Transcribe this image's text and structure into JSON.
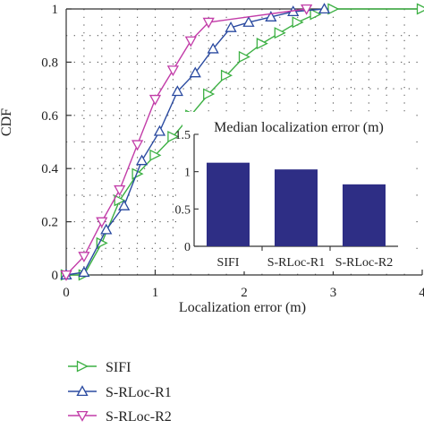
{
  "chart_data": [
    {
      "type": "line",
      "xlabel": "Localization error (m)",
      "ylabel": "CDF",
      "xlim": [
        0,
        4
      ],
      "ylim": [
        0,
        1
      ],
      "xticks": [
        "0",
        "1",
        "2",
        "3",
        "4"
      ],
      "yticks": [
        "0",
        "0.2",
        "0.4",
        "0.6",
        "0.8",
        "1"
      ],
      "grid": "dotted",
      "legend_position": "bottom-left, below plot",
      "series": [
        {
          "name": "SIFI",
          "color": "#3cb043",
          "marker": "triangle-right",
          "x": [
            0,
            0.2,
            0.4,
            0.6,
            0.8,
            1.0,
            1.2,
            1.4,
            1.6,
            1.8,
            2.0,
            2.2,
            2.4,
            2.6,
            2.8,
            3.0,
            4.0
          ],
          "y": [
            0,
            0.0,
            0.12,
            0.28,
            0.38,
            0.45,
            0.52,
            0.6,
            0.68,
            0.75,
            0.82,
            0.87,
            0.91,
            0.95,
            0.98,
            1.0,
            1.0
          ]
        },
        {
          "name": "S-RLoc-R1",
          "color": "#2a4aa0",
          "marker": "triangle-up",
          "x": [
            0,
            0.2,
            0.45,
            0.65,
            0.85,
            1.05,
            1.25,
            1.45,
            1.65,
            1.85,
            2.05,
            2.3,
            2.55,
            2.9
          ],
          "y": [
            0,
            0.01,
            0.17,
            0.26,
            0.43,
            0.54,
            0.69,
            0.76,
            0.85,
            0.93,
            0.95,
            0.97,
            0.99,
            1.0
          ]
        },
        {
          "name": "S-RLoc-R2",
          "color": "#c23ca8",
          "marker": "triangle-down",
          "x": [
            0,
            0.2,
            0.4,
            0.6,
            0.8,
            1.0,
            1.2,
            1.4,
            1.6,
            2.7
          ],
          "y": [
            0,
            0.07,
            0.2,
            0.32,
            0.49,
            0.66,
            0.77,
            0.88,
            0.95,
            1.0
          ]
        }
      ]
    },
    {
      "type": "bar",
      "title": "Median localization error (m)",
      "categories": [
        "SIFI",
        "S-RLoc-R1",
        "S-RLoc-R2"
      ],
      "values": [
        1.12,
        1.03,
        0.83
      ],
      "ylim": [
        0,
        1.5
      ],
      "yticks": [
        "0",
        "0.5",
        "1",
        "1.5"
      ],
      "bar_color": "#2e2e85"
    }
  ]
}
